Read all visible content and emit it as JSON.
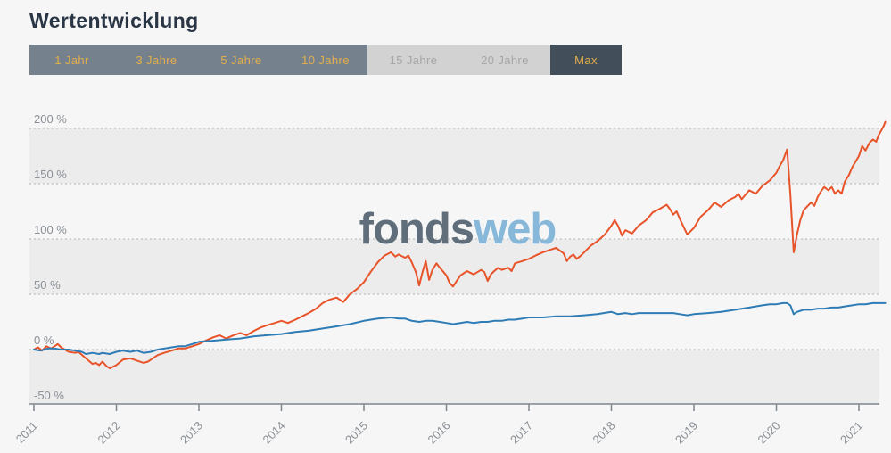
{
  "page": {
    "title": "Wertentwicklung",
    "background": "#f6f6f6"
  },
  "toolbar": {
    "buttons": [
      {
        "label": "1 Jahr",
        "state": "available"
      },
      {
        "label": "3 Jahre",
        "state": "available"
      },
      {
        "label": "5 Jahre",
        "state": "available"
      },
      {
        "label": "10 Jahre",
        "state": "available"
      },
      {
        "label": "15 Jahre",
        "state": "disabled"
      },
      {
        "label": "20 Jahre",
        "state": "disabled"
      },
      {
        "label": "Max",
        "state": "selected"
      }
    ],
    "colors": {
      "available_bg": "#76818e",
      "disabled_bg": "#d2d2d2",
      "selected_bg": "#434e5b",
      "accent_text": "#e2ae4b"
    }
  },
  "watermark": {
    "part1": "fonds",
    "part2": "web",
    "color1": "#5f6e7a",
    "color2": "#87b8d9"
  },
  "chart_data": {
    "type": "line",
    "title": "Wertentwicklung",
    "xlabel": "",
    "ylabel": "%",
    "x_axis": {
      "ticks": [
        2011,
        2012,
        2013,
        2014,
        2015,
        2016,
        2017,
        2018,
        2019,
        2020,
        2021
      ],
      "range": [
        2011,
        2021.4
      ]
    },
    "y_axis": {
      "tick_labels": [
        "200 %",
        "150 %",
        "100 %",
        "50 %",
        "0 %",
        "-50 %"
      ],
      "tick_values": [
        200,
        150,
        100,
        50,
        0,
        -50
      ],
      "range": [
        -50,
        210
      ]
    },
    "grid": "horizontal-dotted",
    "legend": "none",
    "band_fill": "#ececec",
    "grid_color": "#b3b3b3",
    "axis_color": "#7e868e",
    "label_color": "#8a9097",
    "series": [
      {
        "name": "orange-line",
        "color": "#e8542a",
        "points": [
          [
            2011.0,
            0
          ],
          [
            2011.05,
            2
          ],
          [
            2011.1,
            -1
          ],
          [
            2011.15,
            3
          ],
          [
            2011.21,
            1
          ],
          [
            2011.29,
            5
          ],
          [
            2011.33,
            2
          ],
          [
            2011.42,
            -2
          ],
          [
            2011.5,
            -3
          ],
          [
            2011.54,
            -2
          ],
          [
            2011.63,
            -8
          ],
          [
            2011.71,
            -13
          ],
          [
            2011.75,
            -12
          ],
          [
            2011.79,
            -14
          ],
          [
            2011.83,
            -11
          ],
          [
            2011.88,
            -15
          ],
          [
            2011.92,
            -17
          ],
          [
            2012.0,
            -14
          ],
          [
            2012.08,
            -9
          ],
          [
            2012.17,
            -8
          ],
          [
            2012.25,
            -10
          ],
          [
            2012.33,
            -12
          ],
          [
            2012.38,
            -11
          ],
          [
            2012.42,
            -9
          ],
          [
            2012.5,
            -5
          ],
          [
            2012.58,
            -3
          ],
          [
            2012.67,
            -1
          ],
          [
            2012.75,
            1
          ],
          [
            2012.83,
            1
          ],
          [
            2012.92,
            3
          ],
          [
            2013.0,
            5
          ],
          [
            2013.08,
            8
          ],
          [
            2013.17,
            11
          ],
          [
            2013.25,
            13
          ],
          [
            2013.33,
            10
          ],
          [
            2013.42,
            13
          ],
          [
            2013.5,
            15
          ],
          [
            2013.58,
            13
          ],
          [
            2013.67,
            17
          ],
          [
            2013.75,
            20
          ],
          [
            2013.83,
            22
          ],
          [
            2013.92,
            24
          ],
          [
            2014.0,
            26
          ],
          [
            2014.08,
            24
          ],
          [
            2014.17,
            27
          ],
          [
            2014.25,
            30
          ],
          [
            2014.33,
            33
          ],
          [
            2014.42,
            37
          ],
          [
            2014.5,
            42
          ],
          [
            2014.58,
            45
          ],
          [
            2014.67,
            47
          ],
          [
            2014.75,
            43
          ],
          [
            2014.83,
            50
          ],
          [
            2014.92,
            55
          ],
          [
            2015.0,
            61
          ],
          [
            2015.08,
            70
          ],
          [
            2015.17,
            79
          ],
          [
            2015.25,
            85
          ],
          [
            2015.33,
            88
          ],
          [
            2015.38,
            84
          ],
          [
            2015.42,
            86
          ],
          [
            2015.5,
            83
          ],
          [
            2015.54,
            85
          ],
          [
            2015.58,
            79
          ],
          [
            2015.63,
            70
          ],
          [
            2015.67,
            58
          ],
          [
            2015.71,
            70
          ],
          [
            2015.75,
            80
          ],
          [
            2015.79,
            63
          ],
          [
            2015.83,
            72
          ],
          [
            2015.88,
            78
          ],
          [
            2015.92,
            74
          ],
          [
            2016.0,
            67
          ],
          [
            2016.04,
            60
          ],
          [
            2016.08,
            57
          ],
          [
            2016.17,
            67
          ],
          [
            2016.25,
            71
          ],
          [
            2016.33,
            68
          ],
          [
            2016.42,
            72
          ],
          [
            2016.46,
            70
          ],
          [
            2016.5,
            62
          ],
          [
            2016.54,
            68
          ],
          [
            2016.58,
            71
          ],
          [
            2016.63,
            74
          ],
          [
            2016.67,
            72
          ],
          [
            2016.75,
            74
          ],
          [
            2016.79,
            71
          ],
          [
            2016.83,
            78
          ],
          [
            2016.92,
            80
          ],
          [
            2017.0,
            82
          ],
          [
            2017.08,
            85
          ],
          [
            2017.17,
            88
          ],
          [
            2017.25,
            90
          ],
          [
            2017.33,
            92
          ],
          [
            2017.42,
            87
          ],
          [
            2017.46,
            80
          ],
          [
            2017.5,
            84
          ],
          [
            2017.54,
            86
          ],
          [
            2017.58,
            82
          ],
          [
            2017.63,
            85
          ],
          [
            2017.67,
            88
          ],
          [
            2017.75,
            94
          ],
          [
            2017.83,
            98
          ],
          [
            2017.92,
            104
          ],
          [
            2018.0,
            112
          ],
          [
            2018.04,
            117
          ],
          [
            2018.08,
            112
          ],
          [
            2018.13,
            103
          ],
          [
            2018.17,
            108
          ],
          [
            2018.25,
            105
          ],
          [
            2018.33,
            112
          ],
          [
            2018.42,
            117
          ],
          [
            2018.5,
            124
          ],
          [
            2018.58,
            127
          ],
          [
            2018.67,
            131
          ],
          [
            2018.71,
            127
          ],
          [
            2018.75,
            122
          ],
          [
            2018.79,
            125
          ],
          [
            2018.83,
            118
          ],
          [
            2018.92,
            104
          ],
          [
            2019.0,
            110
          ],
          [
            2019.08,
            120
          ],
          [
            2019.17,
            126
          ],
          [
            2019.25,
            133
          ],
          [
            2019.33,
            129
          ],
          [
            2019.42,
            135
          ],
          [
            2019.5,
            138
          ],
          [
            2019.54,
            141
          ],
          [
            2019.58,
            136
          ],
          [
            2019.67,
            144
          ],
          [
            2019.75,
            141
          ],
          [
            2019.83,
            148
          ],
          [
            2019.92,
            153
          ],
          [
            2020.0,
            160
          ],
          [
            2020.04,
            166
          ],
          [
            2020.08,
            171
          ],
          [
            2020.13,
            181
          ],
          [
            2020.17,
            140
          ],
          [
            2020.21,
            88
          ],
          [
            2020.25,
            104
          ],
          [
            2020.29,
            117
          ],
          [
            2020.33,
            126
          ],
          [
            2020.38,
            130
          ],
          [
            2020.42,
            133
          ],
          [
            2020.46,
            130
          ],
          [
            2020.5,
            138
          ],
          [
            2020.54,
            143
          ],
          [
            2020.58,
            147
          ],
          [
            2020.63,
            144
          ],
          [
            2020.67,
            147
          ],
          [
            2020.71,
            141
          ],
          [
            2020.75,
            144
          ],
          [
            2020.79,
            141
          ],
          [
            2020.83,
            152
          ],
          [
            2020.88,
            158
          ],
          [
            2020.92,
            165
          ],
          [
            2020.96,
            170
          ],
          [
            2021.0,
            175
          ],
          [
            2021.04,
            184
          ],
          [
            2021.08,
            180
          ],
          [
            2021.13,
            187
          ],
          [
            2021.17,
            190
          ],
          [
            2021.21,
            188
          ],
          [
            2021.24,
            194
          ],
          [
            2021.27,
            198
          ],
          [
            2021.3,
            202
          ],
          [
            2021.32,
            206
          ]
        ]
      },
      {
        "name": "blue-line",
        "color": "#2e7cb5",
        "points": [
          [
            2011.0,
            0
          ],
          [
            2011.08,
            -1
          ],
          [
            2011.17,
            1
          ],
          [
            2011.25,
            1
          ],
          [
            2011.33,
            0
          ],
          [
            2011.42,
            0
          ],
          [
            2011.5,
            -1
          ],
          [
            2011.58,
            -2
          ],
          [
            2011.63,
            -4
          ],
          [
            2011.71,
            -3
          ],
          [
            2011.79,
            -4
          ],
          [
            2011.83,
            -3
          ],
          [
            2011.92,
            -4
          ],
          [
            2012.0,
            -2
          ],
          [
            2012.08,
            -1
          ],
          [
            2012.17,
            -2
          ],
          [
            2012.25,
            -1
          ],
          [
            2012.33,
            -3
          ],
          [
            2012.42,
            -2
          ],
          [
            2012.5,
            0
          ],
          [
            2012.58,
            1
          ],
          [
            2012.67,
            2
          ],
          [
            2012.75,
            3
          ],
          [
            2012.83,
            3
          ],
          [
            2012.92,
            5
          ],
          [
            2013.0,
            7
          ],
          [
            2013.17,
            8
          ],
          [
            2013.33,
            9
          ],
          [
            2013.5,
            10
          ],
          [
            2013.67,
            12
          ],
          [
            2013.83,
            13
          ],
          [
            2014.0,
            14
          ],
          [
            2014.17,
            16
          ],
          [
            2014.33,
            17
          ],
          [
            2014.5,
            19
          ],
          [
            2014.67,
            21
          ],
          [
            2014.83,
            23
          ],
          [
            2015.0,
            26
          ],
          [
            2015.17,
            28
          ],
          [
            2015.33,
            29
          ],
          [
            2015.42,
            28
          ],
          [
            2015.5,
            28
          ],
          [
            2015.58,
            26
          ],
          [
            2015.67,
            25
          ],
          [
            2015.75,
            26
          ],
          [
            2015.83,
            26
          ],
          [
            2015.92,
            25
          ],
          [
            2016.0,
            24
          ],
          [
            2016.08,
            23
          ],
          [
            2016.17,
            24
          ],
          [
            2016.25,
            25
          ],
          [
            2016.33,
            24
          ],
          [
            2016.42,
            25
          ],
          [
            2016.5,
            25
          ],
          [
            2016.58,
            26
          ],
          [
            2016.67,
            26
          ],
          [
            2016.75,
            27
          ],
          [
            2016.83,
            27
          ],
          [
            2016.92,
            28
          ],
          [
            2017.0,
            29
          ],
          [
            2017.17,
            29
          ],
          [
            2017.33,
            30
          ],
          [
            2017.5,
            30
          ],
          [
            2017.67,
            31
          ],
          [
            2017.83,
            32
          ],
          [
            2018.0,
            34
          ],
          [
            2018.08,
            32
          ],
          [
            2018.17,
            33
          ],
          [
            2018.25,
            32
          ],
          [
            2018.33,
            33
          ],
          [
            2018.42,
            33
          ],
          [
            2018.5,
            33
          ],
          [
            2018.58,
            33
          ],
          [
            2018.67,
            33
          ],
          [
            2018.75,
            33
          ],
          [
            2018.83,
            32
          ],
          [
            2018.92,
            31
          ],
          [
            2019.0,
            32
          ],
          [
            2019.17,
            33
          ],
          [
            2019.33,
            34
          ],
          [
            2019.5,
            36
          ],
          [
            2019.67,
            38
          ],
          [
            2019.83,
            40
          ],
          [
            2019.92,
            41
          ],
          [
            2020.0,
            41
          ],
          [
            2020.08,
            42
          ],
          [
            2020.13,
            42
          ],
          [
            2020.17,
            40
          ],
          [
            2020.21,
            32
          ],
          [
            2020.25,
            34
          ],
          [
            2020.33,
            36
          ],
          [
            2020.42,
            36
          ],
          [
            2020.5,
            37
          ],
          [
            2020.58,
            37
          ],
          [
            2020.67,
            38
          ],
          [
            2020.75,
            38
          ],
          [
            2020.83,
            39
          ],
          [
            2020.92,
            40
          ],
          [
            2021.0,
            41
          ],
          [
            2021.08,
            41
          ],
          [
            2021.17,
            42
          ],
          [
            2021.25,
            42
          ],
          [
            2021.32,
            42
          ]
        ]
      }
    ]
  }
}
